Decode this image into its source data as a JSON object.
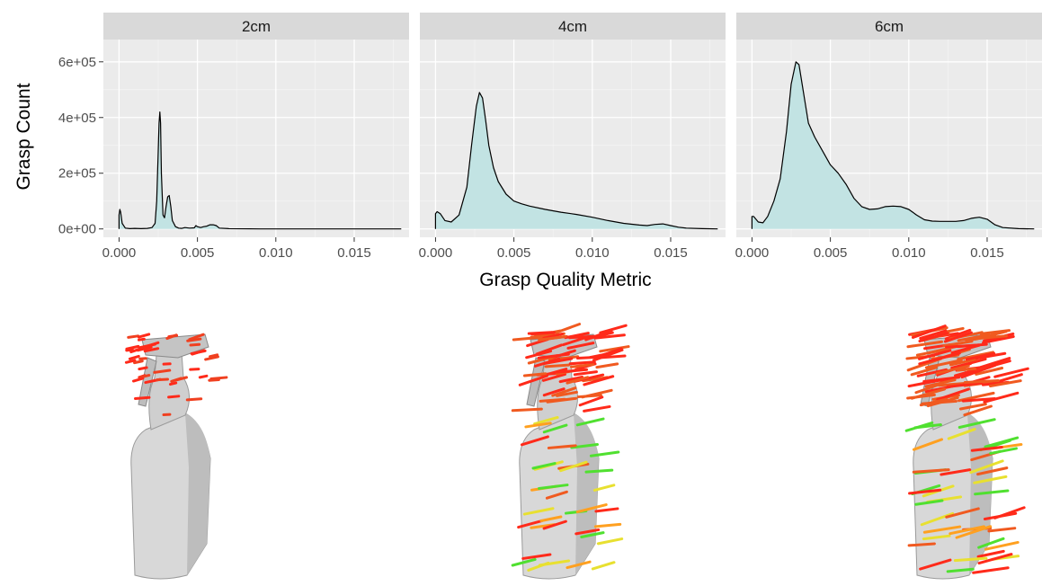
{
  "chart_data": {
    "type": "area",
    "subtype": "density",
    "xlabel": "Grasp Quality Metric",
    "ylabel": "Grasp Count",
    "xlim": [
      -0.001,
      0.0185
    ],
    "ylim": [
      -30000,
      680000
    ],
    "x_ticks": [
      0.0,
      0.005,
      0.01,
      0.015
    ],
    "x_tick_labels": [
      "0.000",
      "0.005",
      "0.010",
      "0.015"
    ],
    "y_ticks": [
      0,
      200000,
      400000,
      600000
    ],
    "y_tick_labels": [
      "0e+00",
      "2e+05",
      "4e+05",
      "6e+05"
    ],
    "grid": true,
    "panel_background": "#ebebeb",
    "strip_background": "#d9d9d9",
    "fill_color": "#c2e3e3",
    "line_color": "#000000",
    "panels": [
      {
        "label": "2cm",
        "x": [
          0.0,
          5e-05,
          0.0001,
          0.0002,
          0.0004,
          0.0007,
          0.001,
          0.0014,
          0.0018,
          0.0021,
          0.0023,
          0.0024,
          0.0025,
          0.00255,
          0.0026,
          0.00265,
          0.0027,
          0.0028,
          0.0029,
          0.003,
          0.0031,
          0.0032,
          0.0033,
          0.0034,
          0.0036,
          0.0038,
          0.004,
          0.0042,
          0.0045,
          0.0048,
          0.0049,
          0.005,
          0.0052,
          0.0054,
          0.0056,
          0.0058,
          0.006,
          0.0062,
          0.0064,
          0.007,
          0.009,
          0.012,
          0.015,
          0.018
        ],
        "y": [
          50000,
          70000,
          60000,
          20000,
          3000,
          1000,
          2000,
          1000,
          2000,
          5000,
          20000,
          100000,
          280000,
          380000,
          420000,
          380000,
          200000,
          50000,
          40000,
          80000,
          115000,
          120000,
          80000,
          30000,
          8000,
          3000,
          2000,
          5000,
          3000,
          4000,
          12000,
          8000,
          5000,
          8000,
          10000,
          15000,
          15000,
          12000,
          3000,
          1000,
          0,
          0,
          0,
          0
        ]
      },
      {
        "label": "4cm",
        "x": [
          0.0,
          0.0001,
          0.0003,
          0.0006,
          0.001,
          0.0015,
          0.002,
          0.0023,
          0.0026,
          0.0028,
          0.003,
          0.0032,
          0.0034,
          0.0037,
          0.004,
          0.0045,
          0.005,
          0.0055,
          0.006,
          0.007,
          0.008,
          0.009,
          0.01,
          0.011,
          0.012,
          0.013,
          0.0135,
          0.014,
          0.0145,
          0.015,
          0.0155,
          0.016,
          0.017,
          0.018
        ],
        "y": [
          55000,
          62000,
          55000,
          30000,
          25000,
          50000,
          150000,
          300000,
          440000,
          490000,
          470000,
          390000,
          300000,
          220000,
          170000,
          125000,
          100000,
          90000,
          82000,
          70000,
          60000,
          52000,
          42000,
          30000,
          20000,
          14000,
          12000,
          16000,
          18000,
          12000,
          6000,
          3000,
          1000,
          0
        ]
      },
      {
        "label": "6cm",
        "x": [
          0.0,
          0.0001,
          0.0004,
          0.0007,
          0.001,
          0.0014,
          0.0018,
          0.0022,
          0.0025,
          0.0028,
          0.003,
          0.0032,
          0.0034,
          0.0036,
          0.004,
          0.0045,
          0.005,
          0.0055,
          0.006,
          0.0065,
          0.007,
          0.0075,
          0.008,
          0.0085,
          0.009,
          0.0095,
          0.01,
          0.0105,
          0.011,
          0.0115,
          0.012,
          0.0125,
          0.013,
          0.0135,
          0.014,
          0.0145,
          0.015,
          0.0155,
          0.016,
          0.017,
          0.018
        ],
        "y": [
          45000,
          45000,
          25000,
          22000,
          45000,
          100000,
          180000,
          350000,
          520000,
          600000,
          590000,
          520000,
          450000,
          380000,
          330000,
          280000,
          230000,
          200000,
          160000,
          110000,
          80000,
          70000,
          72000,
          80000,
          82000,
          80000,
          70000,
          50000,
          33000,
          28000,
          27000,
          27000,
          27000,
          30000,
          38000,
          42000,
          35000,
          15000,
          5000,
          1000,
          0
        ]
      }
    ]
  },
  "renders": [
    {
      "label": "2cm",
      "grasp_colors": [
        "#ff2a1a",
        "#f04020",
        "#ff5a1a"
      ]
    },
    {
      "label": "4cm",
      "grasp_colors": [
        "#ff2a1a",
        "#f05a20",
        "#ffa020",
        "#e8e030",
        "#50e030"
      ]
    },
    {
      "label": "6cm",
      "grasp_colors": [
        "#ff2a1a",
        "#f05a20",
        "#ffa020",
        "#e8e030",
        "#50e030"
      ]
    }
  ]
}
